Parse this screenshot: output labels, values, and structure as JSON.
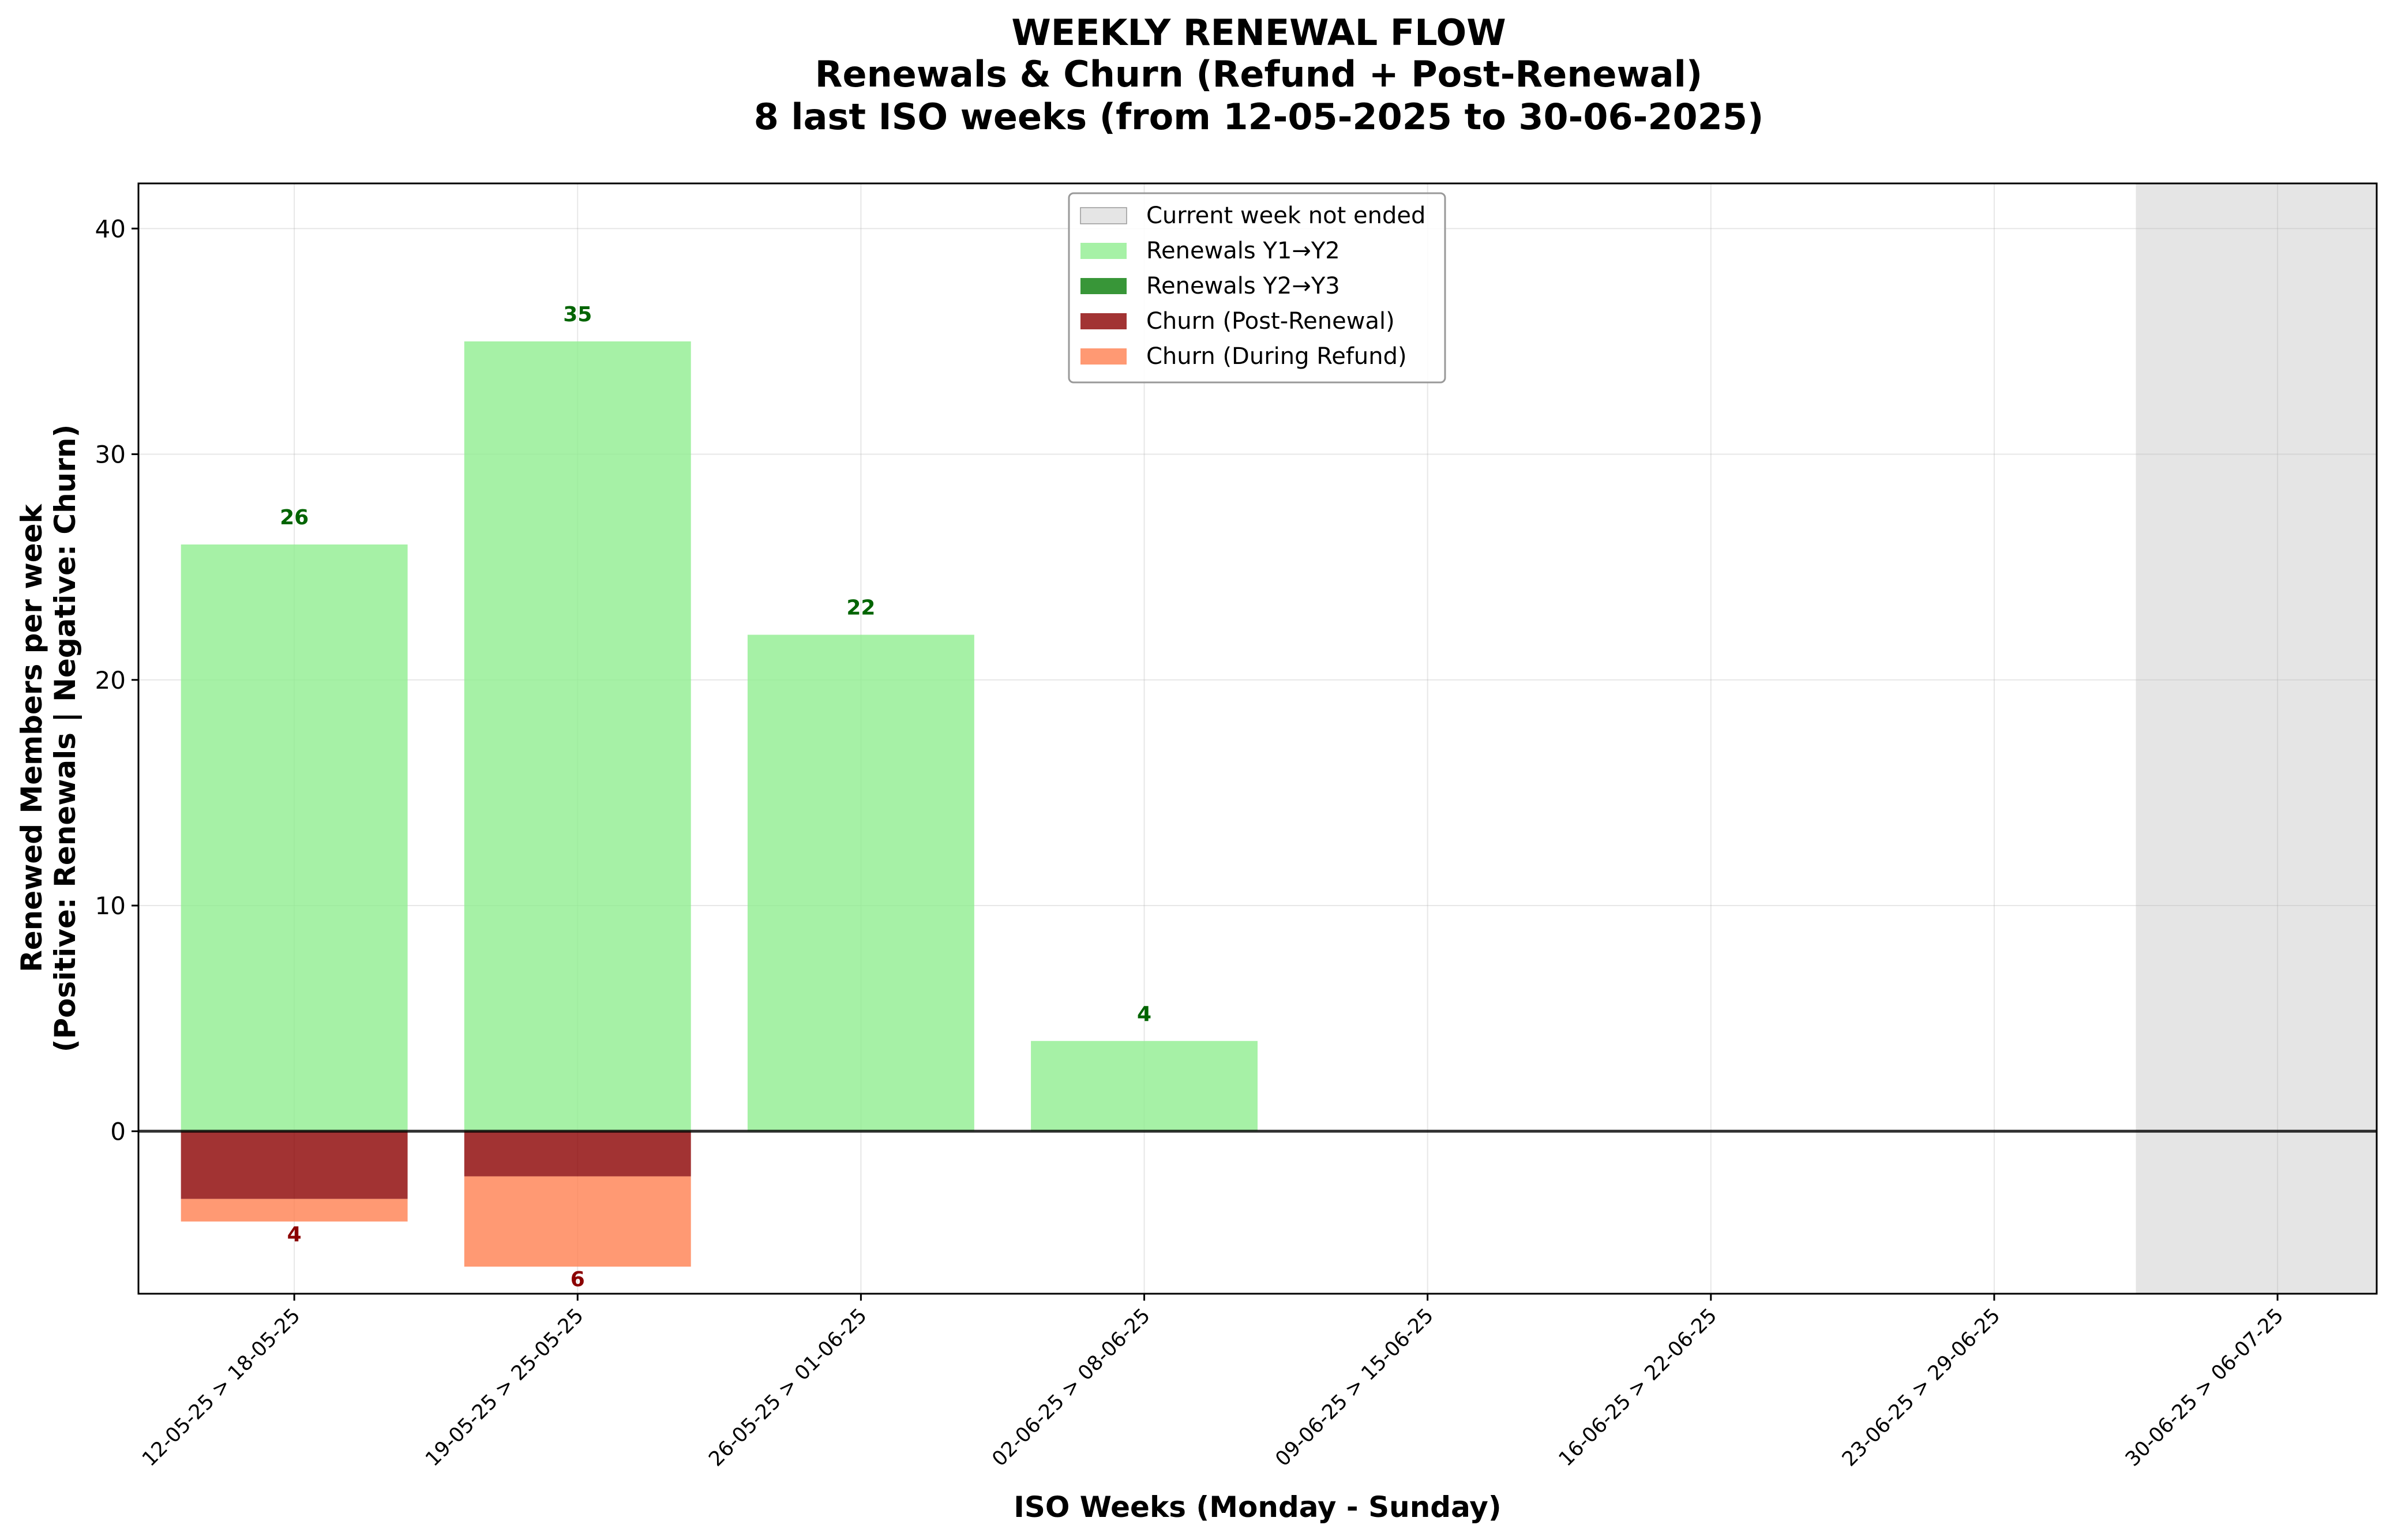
{
  "chart_data": {
    "type": "bar",
    "title": "WEEKLY RENEWAL FLOW",
    "subtitle_lines": [
      "Renewals & Churn (Refund + Post-Renewal)",
      "8 last ISO weeks (from 12-05-2025 to 30-06-2025)"
    ],
    "xlabel": "ISO Weeks (Monday - Sunday)",
    "ylabel_lines": [
      "Renewed Members per week",
      "(Positive: Renewals | Negative: Churn)"
    ],
    "categories": [
      "12-05-25 > 18-05-25",
      "19-05-25 > 25-05-25",
      "26-05-25 > 01-06-25",
      "02-06-25 > 08-06-25",
      "09-06-25 > 15-06-25",
      "16-06-25 > 22-06-25",
      "23-06-25 > 29-06-25",
      "30-06-25 > 06-07-25"
    ],
    "ylim": [
      -7.2,
      42
    ],
    "yticks": [
      0,
      10,
      20,
      30,
      40
    ],
    "grid": true,
    "legend_position": "top-center",
    "series": [
      {
        "name": "Renewals Y1→Y2",
        "color": "#90ee90",
        "values": [
          26,
          35,
          22,
          4,
          0,
          0,
          0,
          0
        ]
      },
      {
        "name": "Renewals Y2→Y3",
        "color": "#228b22",
        "values": [
          0,
          0,
          0,
          0,
          0,
          0,
          0,
          0
        ]
      },
      {
        "name": "Churn (Post-Renewal)",
        "color": "#8b0000",
        "values": [
          -3,
          -2,
          0,
          0,
          0,
          0,
          0,
          0
        ]
      },
      {
        "name": "Churn (During Refund)",
        "color": "#ff7f50",
        "values": [
          -1,
          -4,
          0,
          0,
          0,
          0,
          0,
          0
        ]
      }
    ],
    "total_labels": {
      "positive": [
        26,
        35,
        22,
        4,
        null,
        null,
        null,
        null
      ],
      "negative": [
        4,
        6,
        null,
        null,
        null,
        null,
        null,
        null
      ]
    },
    "current_week": {
      "name": "Current week not ended",
      "index": 7,
      "color": "#d3d3d3"
    },
    "colors": {
      "positive_label": "#006400",
      "negative_label": "#8b0000",
      "zero_line": "#000000"
    }
  }
}
